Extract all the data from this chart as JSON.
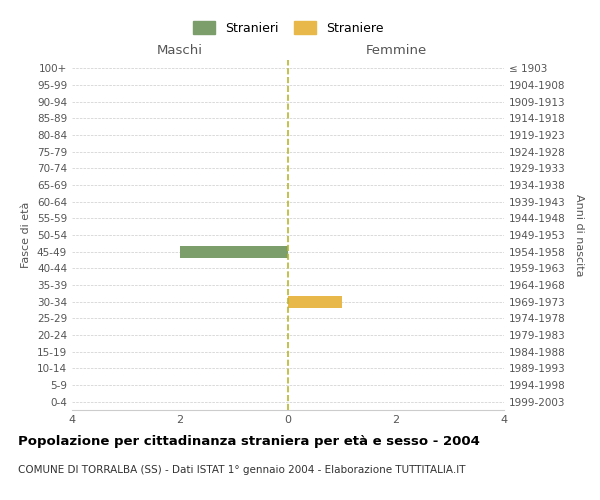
{
  "age_groups": [
    "0-4",
    "5-9",
    "10-14",
    "15-19",
    "20-24",
    "25-29",
    "30-34",
    "35-39",
    "40-44",
    "45-49",
    "50-54",
    "55-59",
    "60-64",
    "65-69",
    "70-74",
    "75-79",
    "80-84",
    "85-89",
    "90-94",
    "95-99",
    "100+"
  ],
  "birth_years": [
    "1999-2003",
    "1994-1998",
    "1989-1993",
    "1984-1988",
    "1979-1983",
    "1974-1978",
    "1969-1973",
    "1964-1968",
    "1959-1963",
    "1954-1958",
    "1949-1953",
    "1944-1948",
    "1939-1943",
    "1934-1938",
    "1929-1933",
    "1924-1928",
    "1919-1923",
    "1914-1918",
    "1909-1913",
    "1904-1908",
    "≤ 1903"
  ],
  "males": [
    0,
    0,
    0,
    0,
    0,
    0,
    0,
    0,
    0,
    2,
    0,
    0,
    0,
    0,
    0,
    0,
    0,
    0,
    0,
    0,
    0
  ],
  "females": [
    0,
    0,
    0,
    0,
    0,
    0,
    1,
    0,
    0,
    0,
    0,
    0,
    0,
    0,
    0,
    0,
    0,
    0,
    0,
    0,
    0
  ],
  "male_color": "#7B9E6B",
  "female_color": "#E8B84B",
  "male_label": "Stranieri",
  "female_label": "Straniere",
  "title": "Popolazione per cittadinanza straniera per età e sesso - 2004",
  "subtitle": "COMUNE DI TORRALBA (SS) - Dati ISTAT 1° gennaio 2004 - Elaborazione TUTTITALIA.IT",
  "xlabel_left": "Maschi",
  "xlabel_right": "Femmine",
  "ylabel_left": "Fasce di età",
  "ylabel_right": "Anni di nascita",
  "xlim": 4,
  "xticks": [
    -4,
    -2,
    0,
    2,
    4
  ],
  "xticklabels": [
    "4",
    "2",
    "0",
    "2",
    "4"
  ],
  "background_color": "#ffffff",
  "grid_color": "#cccccc",
  "dashed_line_color": "#b8b830"
}
